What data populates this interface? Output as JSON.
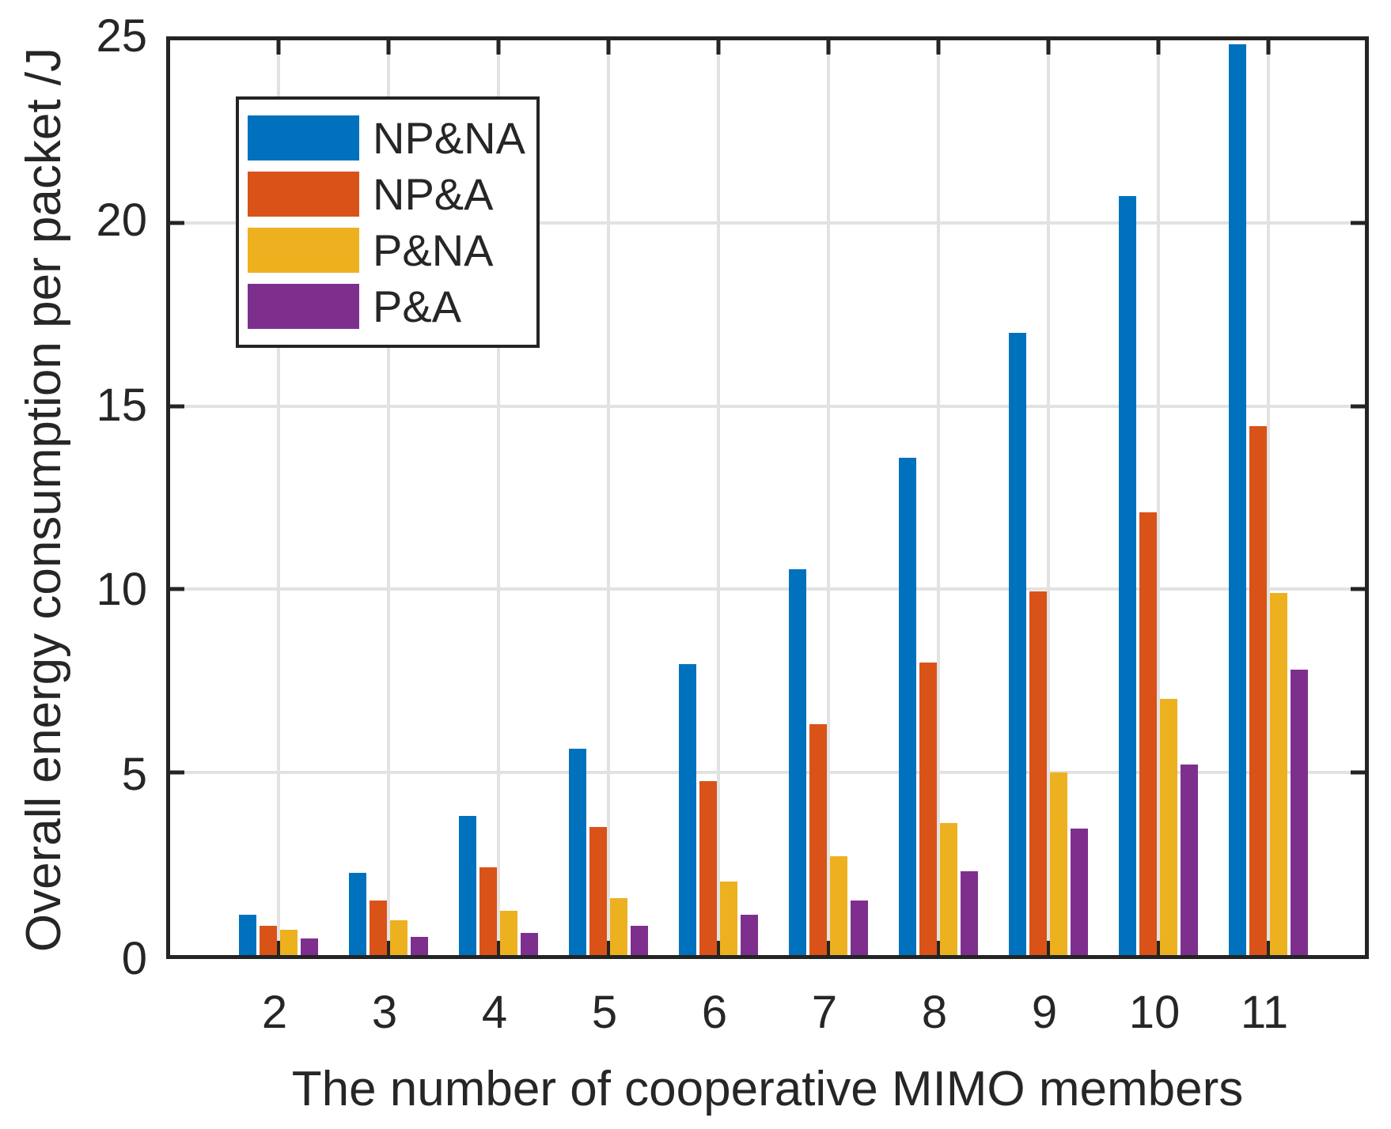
{
  "chart_data": {
    "type": "bar",
    "title": "",
    "xlabel": "The number of cooperative MIMO members",
    "ylabel": "Overall energy consumption per packet /J",
    "categories": [
      "2",
      "3",
      "4",
      "5",
      "6",
      "7",
      "8",
      "9",
      "10",
      "11"
    ],
    "ylim": [
      0,
      25
    ],
    "yticks": [
      0,
      5,
      10,
      15,
      20,
      25
    ],
    "grid": true,
    "legend_position": "top-left",
    "series": [
      {
        "name": "NP&NA",
        "color": "#0072BD",
        "values": [
          1.1,
          2.25,
          3.8,
          5.65,
          7.95,
          10.55,
          13.6,
          17.0,
          20.75,
          24.9
        ]
      },
      {
        "name": "NP&A",
        "color": "#D95319",
        "values": [
          0.8,
          1.5,
          2.4,
          3.5,
          4.75,
          6.3,
          8.0,
          9.95,
          12.1,
          14.45
        ]
      },
      {
        "name": "P&NA",
        "color": "#EDB120",
        "values": [
          0.7,
          0.95,
          1.2,
          1.55,
          2.0,
          2.7,
          3.6,
          5.0,
          7.0,
          9.9
        ]
      },
      {
        "name": "P&A",
        "color": "#7E2F8E",
        "values": [
          0.45,
          0.5,
          0.6,
          0.8,
          1.1,
          1.5,
          2.3,
          3.45,
          5.2,
          7.8
        ]
      }
    ],
    "axis_color": "#242424",
    "grid_color": "#e2e2e2",
    "background_color": "#ffffff"
  }
}
